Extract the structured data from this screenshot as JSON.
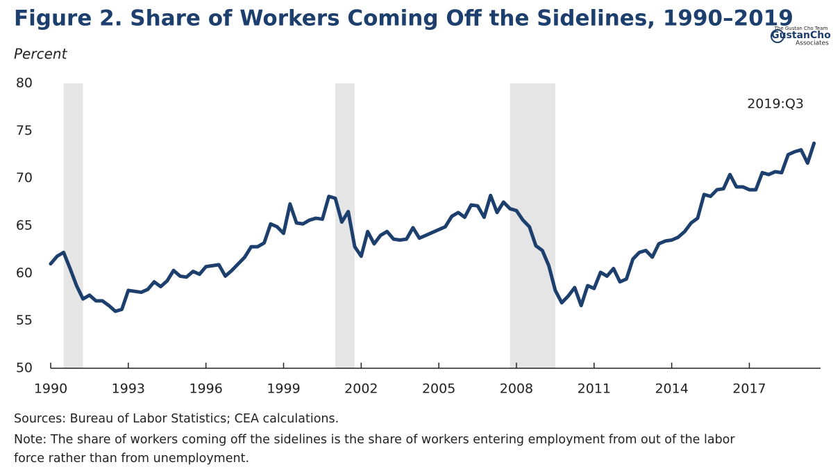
{
  "chart_data": {
    "type": "line",
    "title": "Figure 2. Share of Workers Coming Off the Sidelines, 1990–2019",
    "y_axis_label": "Percent",
    "annotation": "2019:Q3",
    "logo": [
      "The Gustan Cho Team",
      "GustanCho",
      "Associates"
    ],
    "sources": "Sources: Bureau of Labor Statistics; CEA calculations.",
    "note_lines": [
      "Note: The share of workers coming off the sidelines is the share of workers entering employment from out of the labor",
      "force rather than from unemployment."
    ],
    "color": "#1d3f6e",
    "shaded_periods": [
      [
        1990.5,
        1991.25
      ],
      [
        2001.0,
        2001.75
      ],
      [
        2007.75,
        2009.5
      ]
    ],
    "x": [
      1990,
      1990.25,
      1990.5,
      1990.75,
      1991,
      1991.25,
      1991.5,
      1991.75,
      1992,
      1992.25,
      1992.5,
      1992.75,
      1993,
      1993.25,
      1993.5,
      1993.75,
      1994,
      1994.25,
      1994.5,
      1994.75,
      1995,
      1995.25,
      1995.5,
      1995.75,
      1996,
      1996.25,
      1996.5,
      1996.75,
      1997,
      1997.25,
      1997.5,
      1997.75,
      1998,
      1998.25,
      1998.5,
      1998.75,
      1999,
      1999.25,
      1999.5,
      1999.75,
      2000,
      2000.25,
      2000.5,
      2000.75,
      2001,
      2001.25,
      2001.5,
      2001.75,
      2002,
      2002.25,
      2002.5,
      2002.75,
      2003,
      2003.25,
      2003.5,
      2003.75,
      2004,
      2004.25,
      2004.5,
      2004.75,
      2005,
      2005.25,
      2005.5,
      2005.75,
      2006,
      2006.25,
      2006.5,
      2006.75,
      2007,
      2007.25,
      2007.5,
      2007.75,
      2008,
      2008.25,
      2008.5,
      2008.75,
      2009,
      2009.25,
      2009.5,
      2009.75,
      2010,
      2010.25,
      2010.5,
      2010.75,
      2011,
      2011.25,
      2011.5,
      2011.75,
      2012,
      2012.25,
      2012.5,
      2012.75,
      2013,
      2013.25,
      2013.5,
      2013.75,
      2014,
      2014.25,
      2014.5,
      2014.75,
      2015,
      2015.25,
      2015.5,
      2015.75,
      2016,
      2016.25,
      2016.5,
      2016.75,
      2017,
      2017.25,
      2017.5,
      2017.75,
      2018,
      2018.25,
      2018.5,
      2018.75,
      2019,
      2019.25,
      2019.5
    ],
    "values": [
      61.0,
      61.8,
      62.2,
      60.5,
      58.7,
      57.3,
      57.7,
      57.1,
      57.1,
      56.6,
      56.0,
      56.2,
      58.2,
      58.1,
      58.0,
      58.3,
      59.1,
      58.6,
      59.2,
      60.3,
      59.7,
      59.6,
      60.2,
      59.9,
      60.7,
      60.8,
      60.9,
      59.7,
      60.3,
      61.0,
      61.7,
      62.8,
      62.8,
      63.2,
      65.2,
      64.9,
      64.2,
      67.3,
      65.3,
      65.2,
      65.6,
      65.8,
      65.7,
      68.1,
      67.9,
      65.4,
      66.5,
      62.8,
      61.8,
      64.4,
      63.1,
      64.0,
      64.4,
      63.6,
      63.5,
      63.6,
      64.8,
      63.7,
      64.0,
      64.3,
      64.6,
      64.9,
      66.0,
      66.4,
      65.9,
      67.2,
      67.1,
      65.9,
      68.2,
      66.4,
      67.5,
      66.8,
      66.6,
      65.6,
      64.9,
      62.9,
      62.4,
      60.8,
      58.2,
      56.9,
      57.6,
      58.5,
      56.6,
      58.7,
      58.4,
      60.1,
      59.7,
      60.5,
      59.1,
      59.4,
      61.5,
      62.2,
      62.4,
      61.7,
      63.1,
      63.4,
      63.5,
      63.8,
      64.4,
      65.3,
      65.8,
      68.3,
      68.1,
      68.8,
      68.9,
      70.4,
      69.1,
      69.1,
      68.8,
      68.8,
      70.6,
      70.4,
      70.7,
      70.6,
      72.5,
      72.8,
      73.0,
      71.6,
      73.7
    ],
    "xlim": [
      1990,
      2019.75
    ],
    "ylim": [
      50,
      80
    ],
    "xticks": [
      1990,
      1993,
      1996,
      1999,
      2002,
      2005,
      2008,
      2011,
      2014,
      2017
    ],
    "yticks": [
      50,
      55,
      60,
      65,
      70,
      75,
      80
    ],
    "grid": false
  }
}
